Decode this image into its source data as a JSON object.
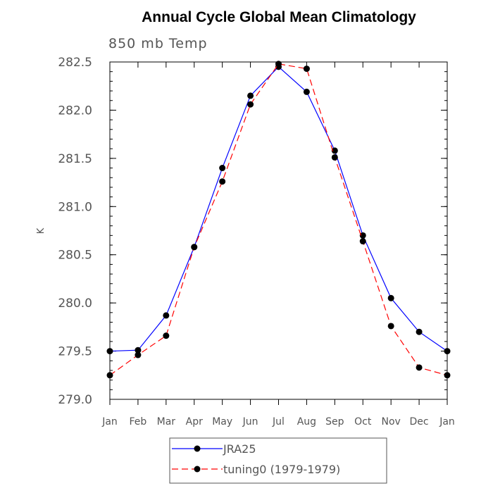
{
  "chart_data": {
    "type": "line",
    "title": "Annual Cycle Global Mean Climatology",
    "subtitle": "850 mb Temp",
    "ylabel": "K",
    "xlabel": "",
    "categories": [
      "Jan",
      "Feb",
      "Mar",
      "Apr",
      "May",
      "Jun",
      "Jul",
      "Aug",
      "Sep",
      "Oct",
      "Nov",
      "Dec",
      "Jan"
    ],
    "ylim": [
      279.0,
      282.5
    ],
    "yticks": [
      "279.0",
      "279.5",
      "280.0",
      "280.5",
      "281.0",
      "281.5",
      "282.0",
      "282.5"
    ],
    "series": [
      {
        "name": "JRA25",
        "color": "#0000ff",
        "line_style": "solid",
        "marker": "filled-circle",
        "values": [
          279.5,
          279.51,
          279.87,
          280.58,
          281.4,
          282.15,
          282.45,
          282.19,
          281.58,
          280.7,
          280.05,
          279.7,
          279.5
        ]
      },
      {
        "name": "tuning0 (1979-1979)",
        "color": "#ff0000",
        "line_style": "dashed",
        "marker": "filled-circle",
        "values": [
          279.25,
          279.46,
          279.66,
          280.58,
          281.26,
          282.06,
          282.48,
          282.43,
          281.51,
          280.64,
          279.76,
          279.33,
          279.25
        ]
      }
    ],
    "legend_position": "bottom-center",
    "grid": false
  }
}
